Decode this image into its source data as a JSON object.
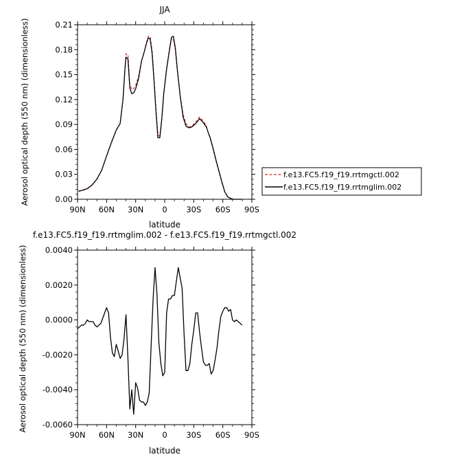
{
  "chart_data": [
    {
      "type": "line",
      "title": "JJA",
      "xlabel": "latitude",
      "ylabel": "Aerosol optical depth (550 nm) (dimensionless)",
      "xlim": [
        90,
        -90
      ],
      "ylim": [
        0,
        0.21
      ],
      "x_ticks": [
        "90N",
        "60N",
        "30N",
        "0",
        "30S",
        "60S",
        "90S"
      ],
      "y_ticks": [
        "0.00",
        "0.03",
        "0.06",
        "0.09",
        "0.12",
        "0.15",
        "0.18",
        "0.21"
      ],
      "y_tick_values": [
        0,
        0.03,
        0.06,
        0.09,
        0.12,
        0.15,
        0.18,
        0.21
      ],
      "legend_position": "right",
      "series": [
        {
          "name": "f.e13.FC5.f19_f19.rrtmgctl.002",
          "color": "#d62728",
          "dash": "dashed",
          "x": [
            89,
            85,
            80,
            75,
            70,
            65,
            60,
            55,
            50,
            46,
            43,
            41,
            40,
            38,
            36,
            34,
            32,
            30,
            27,
            24,
            21,
            19,
            17,
            15,
            13,
            11,
            9,
            7,
            5,
            3,
            1,
            -2,
            -5,
            -7,
            -9,
            -11,
            -13,
            -16,
            -19,
            -22,
            -25,
            -28,
            -32,
            -36,
            -40,
            -43,
            -45,
            -47,
            -50,
            -53,
            -56,
            -59,
            -62,
            -65,
            -68,
            -71,
            -74,
            -77,
            -80
          ],
          "y": [
            0.0095,
            0.0105,
            0.0125,
            0.017,
            0.024,
            0.035,
            0.052,
            0.068,
            0.083,
            0.091,
            0.121,
            0.158,
            0.175,
            0.174,
            0.138,
            0.132,
            0.133,
            0.137,
            0.148,
            0.166,
            0.178,
            0.188,
            0.196,
            0.196,
            0.178,
            0.145,
            0.108,
            0.077,
            0.076,
            0.098,
            0.128,
            0.156,
            0.18,
            0.193,
            0.193,
            0.18,
            0.155,
            0.125,
            0.102,
            0.091,
            0.087,
            0.088,
            0.093,
            0.099,
            0.094,
            0.088,
            0.08,
            0.073,
            0.06,
            0.046,
            0.033,
            0.02,
            0.009,
            0.003,
            0.001,
            0.0,
            0.0,
            0.0,
            0.0
          ]
        },
        {
          "name": "f.e13.FC5.f19_f19.rrtmglim.002",
          "color": "#000000",
          "dash": "solid",
          "x": [
            89,
            85,
            80,
            75,
            70,
            65,
            60,
            55,
            50,
            46,
            43,
            41,
            40,
            38,
            36,
            34,
            32,
            30,
            27,
            24,
            21,
            19,
            17,
            15,
            13,
            11,
            9,
            7,
            5,
            3,
            1,
            -2,
            -5,
            -7,
            -9,
            -11,
            -13,
            -16,
            -19,
            -22,
            -25,
            -28,
            -32,
            -36,
            -40,
            -43,
            -45,
            -47,
            -50,
            -53,
            -56,
            -59,
            -62,
            -65,
            -68,
            -71,
            -74,
            -77,
            -80
          ],
          "y": [
            0.0098,
            0.0108,
            0.0128,
            0.0172,
            0.0243,
            0.0352,
            0.0522,
            0.0685,
            0.0833,
            0.0912,
            0.1209,
            0.1572,
            0.171,
            0.169,
            0.134,
            0.127,
            0.128,
            0.133,
            0.145,
            0.166,
            0.178,
            0.187,
            0.194,
            0.193,
            0.175,
            0.142,
            0.105,
            0.074,
            0.074,
            0.097,
            0.127,
            0.157,
            0.181,
            0.195,
            0.196,
            0.182,
            0.157,
            0.124,
            0.099,
            0.088,
            0.086,
            0.087,
            0.091,
            0.097,
            0.092,
            0.087,
            0.08,
            0.074,
            0.061,
            0.047,
            0.034,
            0.021,
            0.009,
            0.003,
            0.001,
            0.0,
            0.0,
            0.0,
            0.0
          ]
        }
      ]
    },
    {
      "type": "line",
      "title": "f.e13.FC5.f19_f19.rrtmglim.002 - f.e13.FC5.f19_f19.rrtmgctl.002",
      "xlabel": "latitude",
      "ylabel": "Aerosol optical depth (550 nm) (dimensionless)",
      "xlim": [
        90,
        -90
      ],
      "ylim": [
        -0.006,
        0.004
      ],
      "x_ticks": [
        "90N",
        "60N",
        "30N",
        "0",
        "30S",
        "60S",
        "90S"
      ],
      "y_ticks": [
        "-0.0060",
        "-0.0040",
        "-0.0020",
        "0.0000",
        "0.0020",
        "0.0040"
      ],
      "y_tick_values": [
        -0.006,
        -0.004,
        -0.002,
        0.0,
        0.002,
        0.004
      ],
      "series": [
        {
          "color": "#000000",
          "dash": "solid",
          "x": [
            90,
            88,
            86,
            84,
            82,
            80,
            78,
            76,
            74,
            72,
            70,
            68,
            66,
            64,
            62,
            60,
            58,
            56,
            54,
            52,
            50,
            48,
            46,
            44,
            42,
            40,
            38,
            36,
            34,
            32,
            30,
            28,
            26,
            24,
            22,
            20,
            18,
            16,
            14,
            12,
            10,
            8,
            6,
            4,
            2,
            0,
            -2,
            -4,
            -6,
            -8,
            -10,
            -12,
            -14,
            -16,
            -18,
            -20,
            -22,
            -24,
            -26,
            -28,
            -30,
            -32,
            -34,
            -36,
            -38,
            -40,
            -42,
            -44,
            -46,
            -48,
            -50,
            -52,
            -54,
            -56,
            -58,
            -60,
            -62,
            -64,
            -66,
            -68,
            -70,
            -72,
            -74,
            -76,
            -78,
            -80
          ],
          "y": [
            -0.0005,
            -0.0004,
            -0.0003,
            -0.0003,
            -0.0002,
            0.0,
            -0.0001,
            -0.0001,
            -0.0001,
            -0.0003,
            -0.0004,
            -0.0003,
            -0.0002,
            0.0001,
            0.0004,
            0.0007,
            0.0004,
            -0.001,
            -0.0019,
            -0.0021,
            -0.0014,
            -0.0018,
            -0.0022,
            -0.002,
            -0.0011,
            0.0003,
            -0.0022,
            -0.0051,
            -0.004,
            -0.0054,
            -0.0036,
            -0.0039,
            -0.0046,
            -0.0047,
            -0.0047,
            -0.0049,
            -0.0047,
            -0.0042,
            -0.0015,
            0.0012,
            0.003,
            0.0015,
            -0.0013,
            -0.0025,
            -0.0032,
            -0.003,
            0.0004,
            0.0012,
            0.0012,
            0.0014,
            0.0014,
            0.0022,
            0.003,
            0.0024,
            0.0018,
            -0.0008,
            -0.0029,
            -0.0029,
            -0.0025,
            -0.0014,
            -0.0006,
            0.0004,
            0.0004,
            -0.0007,
            -0.0016,
            -0.0024,
            -0.0026,
            -0.0026,
            -0.0025,
            -0.0031,
            -0.0029,
            -0.0023,
            -0.0016,
            -0.0006,
            0.0002,
            0.0005,
            0.0007,
            0.0007,
            0.0005,
            0.0006,
            0.0,
            -0.0001,
            0.0,
            -0.0001,
            -0.0002,
            -0.0003
          ]
        }
      ]
    }
  ]
}
